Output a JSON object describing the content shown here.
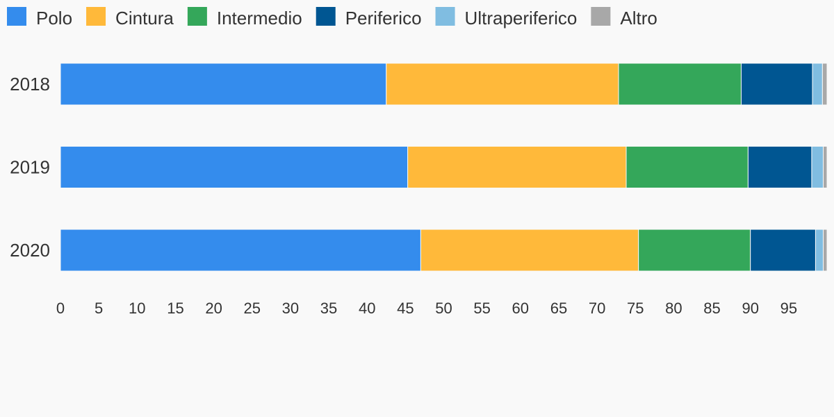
{
  "chart_data": {
    "type": "bar",
    "orientation": "horizontal",
    "stacked": true,
    "title": "",
    "xlabel": "",
    "ylabel": "",
    "xlim": [
      0,
      100
    ],
    "x_ticks": [
      0,
      5,
      10,
      15,
      20,
      25,
      30,
      35,
      40,
      45,
      50,
      55,
      60,
      65,
      70,
      75,
      80,
      85,
      90,
      95
    ],
    "grid": false,
    "legend_position": "top-left",
    "categories": [
      "2018",
      "2019",
      "2020"
    ],
    "series": [
      {
        "name": "Polo",
        "color": "#348ced",
        "values": [
          42.5,
          45.3,
          47.0
        ]
      },
      {
        "name": "Cintura",
        "color": "#ffb93a",
        "values": [
          30.3,
          28.5,
          28.4
        ]
      },
      {
        "name": "Intermedio",
        "color": "#34a75a",
        "values": [
          16.0,
          15.9,
          14.6
        ]
      },
      {
        "name": "Periferico",
        "color": "#005692",
        "values": [
          9.3,
          8.3,
          8.5
        ]
      },
      {
        "name": "Ultraperiferico",
        "color": "#80bde1",
        "values": [
          1.3,
          1.5,
          1.0
        ]
      },
      {
        "name": "Altro",
        "color": "#a8a8a8",
        "values": [
          0.6,
          0.5,
          0.5
        ]
      }
    ]
  }
}
